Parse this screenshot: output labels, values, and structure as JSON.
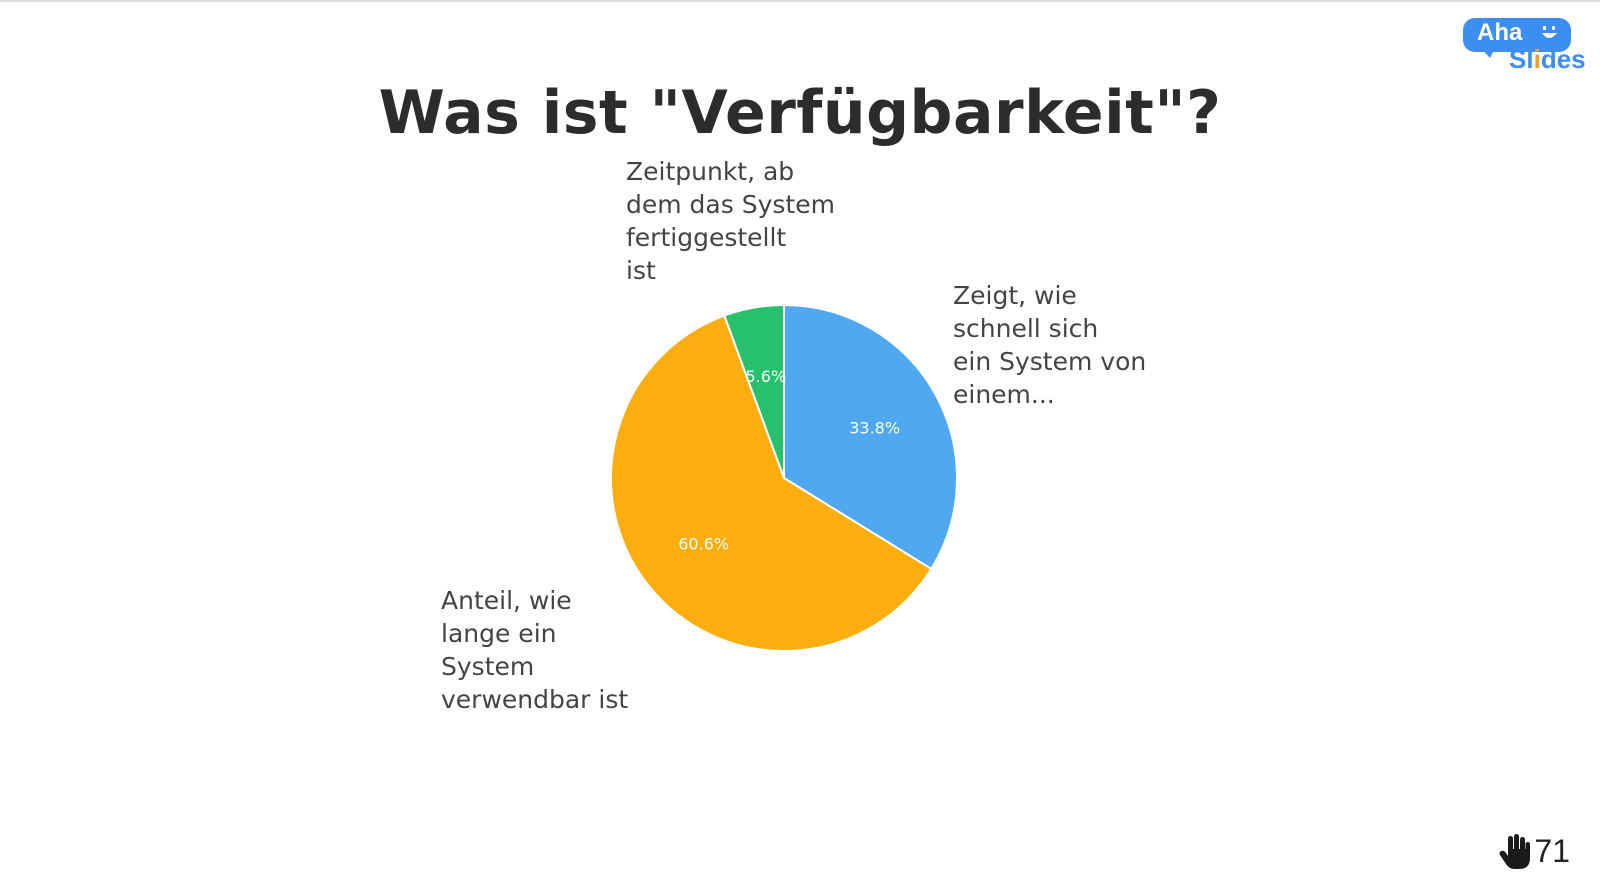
{
  "slide": {
    "title": "Was ist \"Verfügbarkeit\"?"
  },
  "logo": {
    "word_top": "Aha",
    "word_bottom_start": "Sl",
    "word_bottom_accent": "i",
    "word_bottom_end": "des"
  },
  "participants": {
    "icon": "hand-icon",
    "count": "71"
  },
  "chart_data": {
    "type": "pie",
    "title": "Was ist \"Verfügbarkeit\"?",
    "start": "12 o'clock, clockwise",
    "slices": [
      {
        "label": "Zeigt, wie schnell sich ein System von einem...",
        "label_lines": "Zeigt, wie\nschnell sich\nein System von\neinem...",
        "value": 33.8,
        "value_label": "33.8%",
        "color": "#4fa8f0"
      },
      {
        "label": "Anteil, wie lange ein System verwendbar ist",
        "label_lines": "Anteil, wie\nlange ein\nSystem\nverwendbar ist",
        "value": 60.6,
        "value_label": "60.6%",
        "color": "#fcae0e"
      },
      {
        "label": "Zeitpunkt, ab dem das System fertiggestellt ist",
        "label_lines": "Zeitpunkt, ab\ndem das System\nfertiggestellt\nist",
        "value": 5.6,
        "value_label": "5.6%",
        "color": "#27c06c"
      }
    ],
    "legend": "none (labels beside slices)"
  }
}
